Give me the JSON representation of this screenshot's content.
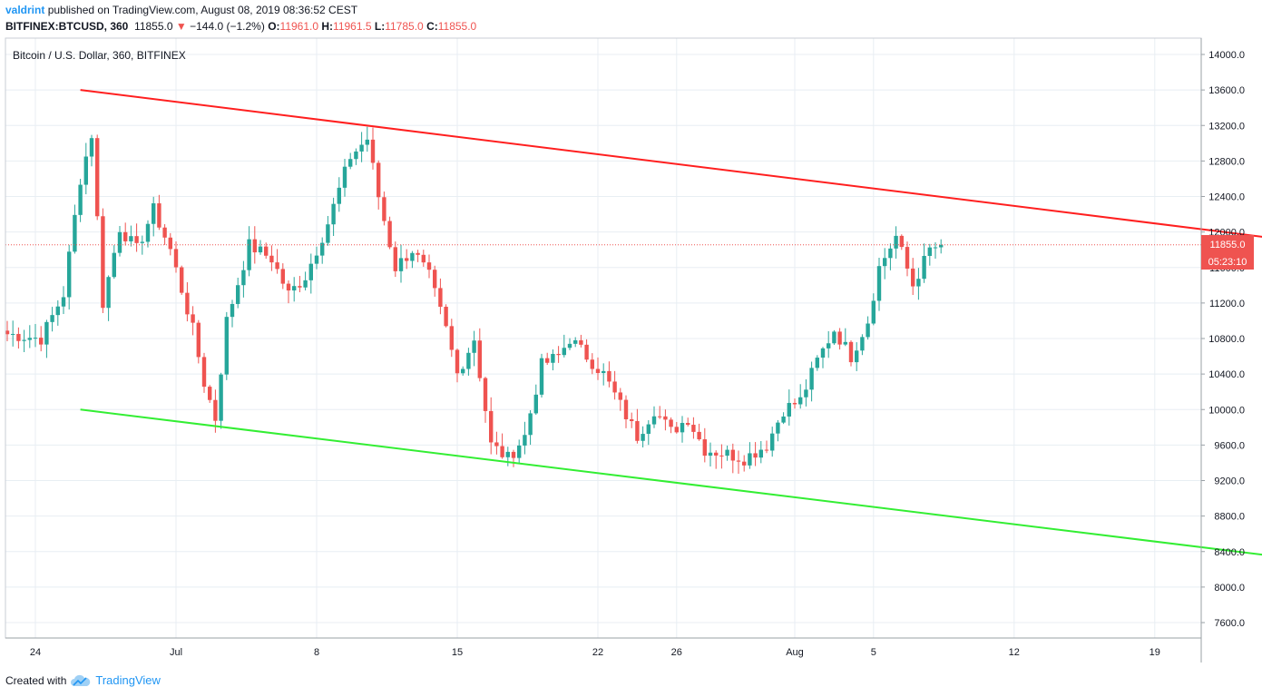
{
  "header": {
    "user": "valdrint",
    "published_text": "published on TradingView.com, August 08, 2019 08:36:52 CEST",
    "symbol": "BITFINEX:BTCUSD, 360",
    "last": "11855.0",
    "change": "−144.0 (−1.2%)",
    "o_label": "O:",
    "o": "11961.0",
    "h_label": "H:",
    "h": "11961.5",
    "l_label": "L:",
    "l": "11785.0",
    "c_label": "C:",
    "c": "11855.0"
  },
  "footer": {
    "created_with": "Created with",
    "brand": "TradingView"
  },
  "colors": {
    "up": "#26a69a",
    "down": "#ef5350",
    "resistance": "#ff1f1f",
    "support": "#33ee33",
    "grid": "#e8eef3",
    "price_line": "#ef5350"
  },
  "chart_data": {
    "type": "candlestick",
    "title": "Bitcoin / U.S. Dollar, 360, BITFINEX",
    "x_ticks": [
      "24",
      "Jul",
      "8",
      "15",
      "22",
      "26",
      "Aug",
      "5",
      "12",
      "19"
    ],
    "y_ticks": [
      "14000.0",
      "13600.0",
      "13200.0",
      "12800.0",
      "12400.0",
      "12000.0",
      "11600.0",
      "11200.0",
      "10800.0",
      "10400.0",
      "10000.0",
      "9600.0",
      "9200.0",
      "8800.0",
      "8400.0",
      "8000.0",
      "7600.0"
    ],
    "ylim": [
      7300,
      14300
    ],
    "grid": true,
    "last_price_label": "11855.0",
    "countdown_label": "05:23:10",
    "last_price": 11855,
    "trendlines": [
      {
        "name": "resistance",
        "from": [
          "Jun 26",
          13600
        ],
        "to": [
          "Aug 19",
          11900
        ],
        "arrow": true
      },
      {
        "name": "support",
        "from": [
          "Jun 26",
          10000
        ],
        "to": [
          "Aug 18",
          8350
        ],
        "arrow": true
      }
    ],
    "anchors": [
      [
        0,
        10850
      ],
      [
        6,
        10800
      ],
      [
        10,
        11300
      ],
      [
        13,
        12600
      ],
      [
        15,
        13100
      ],
      [
        17,
        11200
      ],
      [
        20,
        12050
      ],
      [
        23,
        11800
      ],
      [
        26,
        12250
      ],
      [
        29,
        11800
      ],
      [
        33,
        10900
      ],
      [
        35,
        10300
      ],
      [
        37,
        9900
      ],
      [
        39,
        11000
      ],
      [
        43,
        11850
      ],
      [
        47,
        11700
      ],
      [
        50,
        11300
      ],
      [
        53,
        11500
      ],
      [
        57,
        12100
      ],
      [
        61,
        12850
      ],
      [
        64,
        13050
      ],
      [
        66,
        12400
      ],
      [
        69,
        11600
      ],
      [
        72,
        11800
      ],
      [
        75,
        11500
      ],
      [
        78,
        10900
      ],
      [
        80,
        10400
      ],
      [
        83,
        10800
      ],
      [
        86,
        9600
      ],
      [
        89,
        9450
      ],
      [
        92,
        9700
      ],
      [
        95,
        10500
      ],
      [
        98,
        10600
      ],
      [
        100,
        10800
      ],
      [
        103,
        10600
      ],
      [
        106,
        10400
      ],
      [
        109,
        10050
      ],
      [
        112,
        9700
      ],
      [
        115,
        10000
      ],
      [
        118,
        9750
      ],
      [
        121,
        9900
      ],
      [
        124,
        9550
      ],
      [
        128,
        9500
      ],
      [
        131,
        9450
      ],
      [
        135,
        9600
      ],
      [
        138,
        10000
      ],
      [
        141,
        10100
      ],
      [
        144,
        10550
      ],
      [
        147,
        10900
      ],
      [
        150,
        10600
      ],
      [
        153,
        11000
      ],
      [
        155,
        11600
      ],
      [
        158,
        11950
      ],
      [
        161,
        11400
      ],
      [
        164,
        11800
      ],
      [
        166,
        11855
      ]
    ],
    "candle_count": 167,
    "date_tick_candle_index": {
      "24": 5,
      "Jul": 30,
      "8": 55,
      "15": 80,
      "22": 105,
      "26": 119,
      "Aug": 140,
      "5": 154,
      "12": 179,
      "19": 204
    }
  }
}
